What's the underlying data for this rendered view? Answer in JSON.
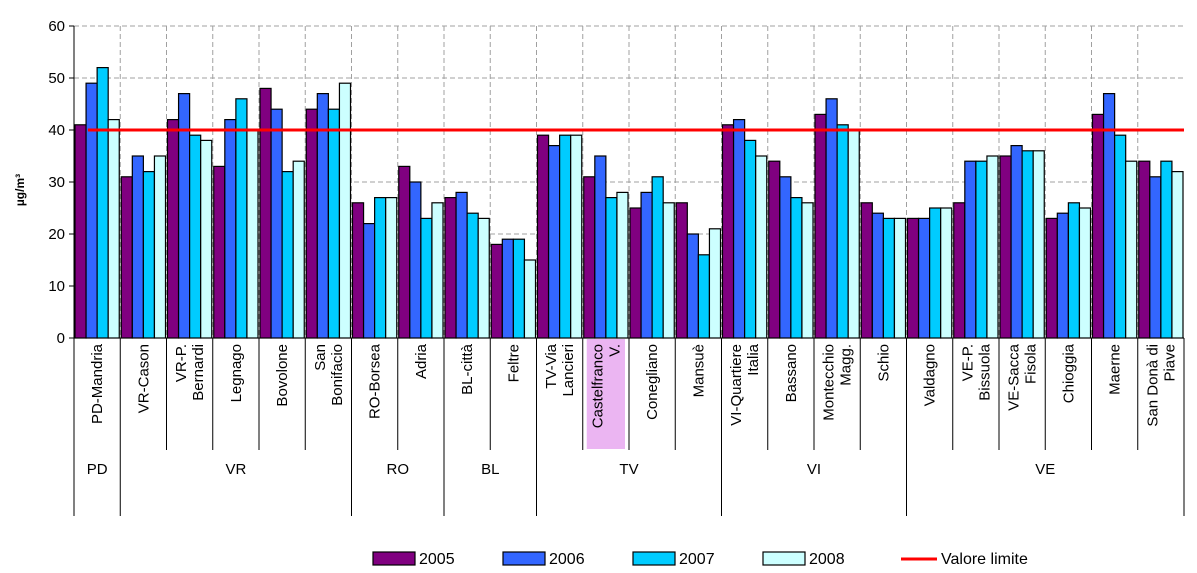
{
  "chart_data": {
    "type": "bar",
    "ylabel": "µg/m³",
    "ylim": [
      0,
      60
    ],
    "yticks": [
      "0",
      "10",
      "20",
      "30",
      "40",
      "50",
      "60"
    ],
    "grid": true,
    "legend_position": "bottom",
    "categories": [
      [
        "PD-Mandria"
      ],
      [
        "VR-Cason"
      ],
      [
        "VR-P.",
        "Bernardi"
      ],
      [
        "Legnago"
      ],
      [
        "Bovolone"
      ],
      [
        "San",
        "Bonifacio"
      ],
      [
        "RO-Borsea"
      ],
      [
        "Adria"
      ],
      [
        "BL-città"
      ],
      [
        "Feltre"
      ],
      [
        "TV-Via",
        "Lancieri"
      ],
      [
        "Castelfranco",
        "V."
      ],
      [
        "Conegliano"
      ],
      [
        "Mansuè"
      ],
      [
        "VI-Quartiere",
        "Italia"
      ],
      [
        "Bassano"
      ],
      [
        "Montecchio",
        "Magg."
      ],
      [
        "Schio"
      ],
      [
        "Valdagno"
      ],
      [
        "VE-P.",
        "Bissuola"
      ],
      [
        "VE-Sacca",
        "Fisola"
      ],
      [
        "Chioggia"
      ],
      [
        "Maerne"
      ],
      [
        "San Donà di",
        "Piave"
      ]
    ],
    "highlighted_category": 11,
    "groups": [
      {
        "label": "PD",
        "count": 1
      },
      {
        "label": "VR",
        "count": 5
      },
      {
        "label": "RO",
        "count": 2
      },
      {
        "label": "BL",
        "count": 2
      },
      {
        "label": "TV",
        "count": 4
      },
      {
        "label": "VI",
        "count": 4
      },
      {
        "label": "VE",
        "count": 6
      }
    ],
    "series": [
      {
        "name": "2005",
        "color": "#800080",
        "values": [
          41,
          31,
          42,
          33,
          48,
          44,
          26,
          33,
          27,
          18,
          39,
          31,
          25,
          26,
          41,
          34,
          43,
          26,
          23,
          26,
          35,
          23,
          43,
          34
        ]
      },
      {
        "name": "2006",
        "color": "#3366FF",
        "values": [
          49,
          35,
          47,
          42,
          44,
          47,
          22,
          30,
          28,
          19,
          37,
          35,
          28,
          20,
          42,
          31,
          46,
          24,
          23,
          34,
          37,
          24,
          47,
          31
        ]
      },
      {
        "name": "2007",
        "color": "#00CCFF",
        "values": [
          52,
          32,
          39,
          46,
          32,
          44,
          27,
          23,
          24,
          19,
          39,
          27,
          31,
          16,
          38,
          27,
          41,
          23,
          25,
          34,
          36,
          26,
          39,
          34
        ]
      },
      {
        "name": "2008",
        "color": "#CCFFFF",
        "values": [
          42,
          35,
          38,
          40,
          34,
          49,
          27,
          26,
          23,
          15,
          39,
          28,
          26,
          21,
          35,
          26,
          40,
          23,
          25,
          35,
          36,
          25,
          34,
          32
        ]
      }
    ],
    "limit_line": {
      "name": "Valore limite",
      "value": 40,
      "color": "#FF0000"
    }
  }
}
